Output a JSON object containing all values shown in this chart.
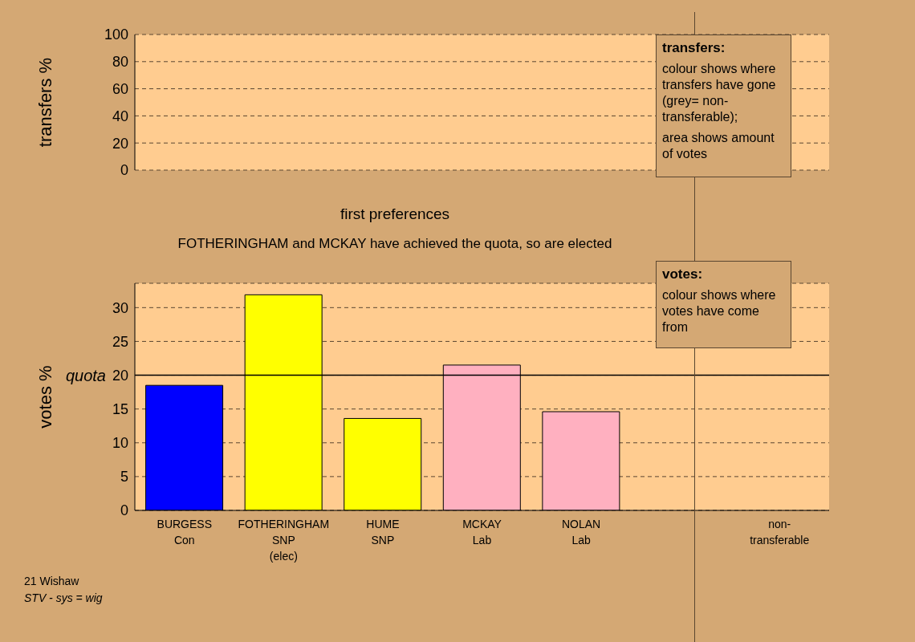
{
  "chart_data": [
    {
      "type": "bar",
      "ylabel": "transfers %",
      "categories": [
        null,
        null,
        null,
        null,
        null,
        null,
        null
      ],
      "values": [
        null,
        null,
        null,
        null,
        null,
        null,
        null
      ],
      "ylim": [
        0,
        100
      ],
      "yticks": [
        0,
        20,
        40,
        60,
        80,
        100
      ],
      "grid": "y",
      "tick_labels": "y",
      "annotations": [
        "transfers:",
        "colour shows where transfers have gone (grey= non-transferable);",
        "area shows amount of votes"
      ]
    },
    {
      "type": "bar",
      "title": "first preferences",
      "subtitle": "FOTHERINGHAM and MCKAY have achieved the quota, so are elected",
      "ylabel": "votes %",
      "categories": [
        "BURGESS\nCon",
        "FOTHERINGHAM\nSNP\n(elec)",
        "HUME\nSNP",
        "MCKAY\nLab",
        "NOLAN\nLab",
        null,
        "non-\ntransferable"
      ],
      "values": [
        18.5,
        31.9,
        13.6,
        21.5,
        14.6,
        null,
        null
      ],
      "colors": [
        "#0000ff",
        "#ffff00",
        "#ffff00",
        "#ffb0c0",
        "#ffb0c0",
        "#ffb0c0",
        "#ffb0c0"
      ],
      "ylim": [
        0,
        33.6
      ],
      "yticks": [
        0,
        5,
        10,
        15,
        20,
        25,
        30
      ],
      "grid": "y",
      "ref_lines": [
        {
          "axis": "y",
          "value": 20,
          "label": "quota"
        }
      ],
      "annotations": [
        "votes:",
        "colour shows where votes have come from",
        "21 Wishaw",
        "STV - sys = wig"
      ]
    }
  ]
}
